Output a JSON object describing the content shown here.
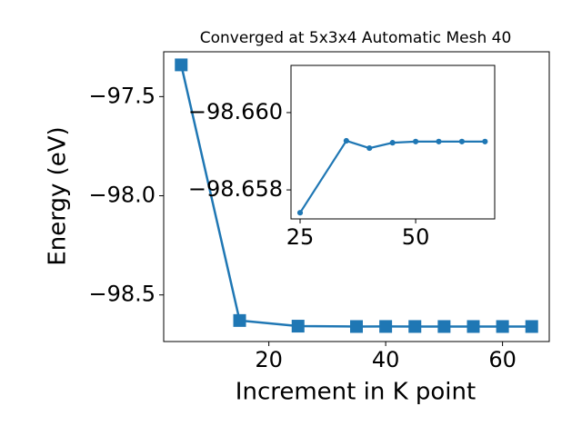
{
  "chart_data": [
    {
      "type": "line",
      "title": "Converged at 5x3x4 Automatic Mesh 40",
      "x_label": "Increment in K point",
      "y_label": "Energy (eV)",
      "x": [
        5,
        15,
        25,
        35,
        40,
        45,
        50,
        55,
        60,
        65
      ],
      "series": [
        {
          "color": "#1f77b4",
          "marker": "square",
          "values": [
            -97.34,
            -98.629,
            -98.6574,
            -98.6593,
            -98.6591,
            -98.6592,
            -98.6593,
            -98.6593,
            -98.6593,
            -98.6593
          ]
        }
      ],
      "xlim": [
        2,
        68
      ],
      "ylim": [
        -98.735,
        -97.274
      ],
      "xticks": [
        20,
        40,
        60
      ],
      "yticks": [
        {
          "value": -97.5,
          "label": "−97.5"
        },
        {
          "value": -98.0,
          "label": "−98.0"
        },
        {
          "value": -98.5,
          "label": "−98.5"
        }
      ]
    },
    {
      "type": "line",
      "x": [
        25,
        35,
        40,
        45,
        50,
        55,
        60,
        65
      ],
      "series": [
        {
          "color": "#1f77b4",
          "marker": "circle",
          "values": [
            -98.65741,
            -98.65927,
            -98.65908,
            -98.65922,
            -98.65925,
            -98.65925,
            -98.65925,
            -98.65925
          ]
        }
      ],
      "xlim": [
        23.03,
        67.1
      ],
      "ylim": [
        -98.65725,
        -98.66122
      ],
      "xticks": [
        25,
        50
      ],
      "yticks": [
        {
          "value": -98.66,
          "label": "−98.660"
        },
        {
          "value": -98.658,
          "label": "−98.658"
        }
      ]
    }
  ]
}
